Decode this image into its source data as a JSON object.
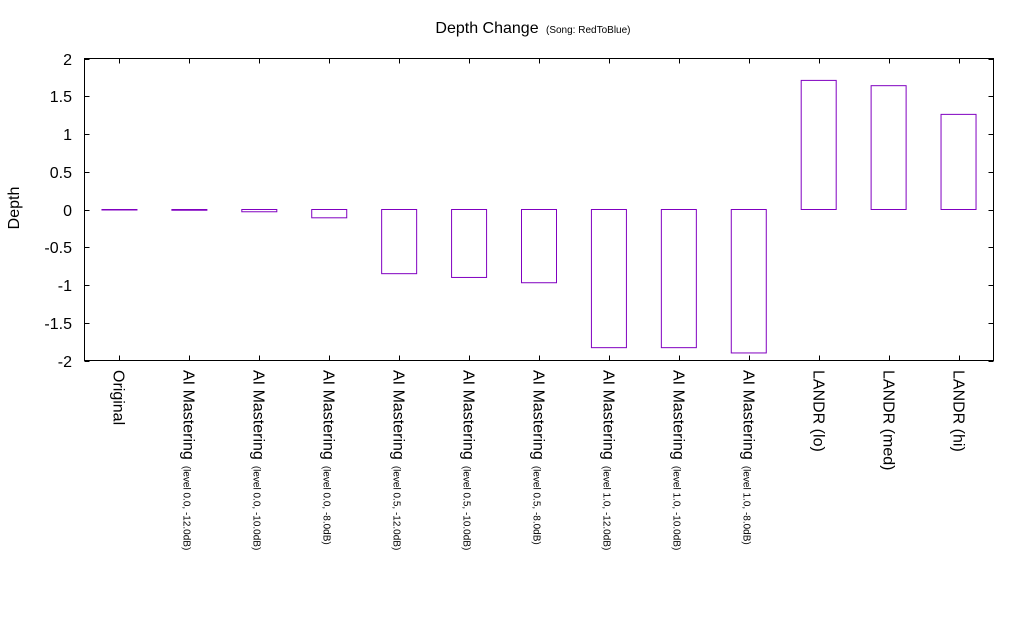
{
  "chart_data": {
    "type": "bar",
    "title": "Depth Change",
    "subtitle": "(Song: RedToBlue)",
    "ylabel": "Depth",
    "xlabel": "",
    "ylim": [
      -2,
      2
    ],
    "yticks": [
      -2,
      -1.5,
      -1,
      -0.5,
      0,
      0.5,
      1,
      1.5,
      2
    ],
    "ytick_labels": [
      "-2",
      "-1.5",
      "-1",
      "-0.5",
      "0",
      "0.5",
      "1",
      "1.5",
      "2"
    ],
    "grid": false,
    "bar_color": "#8000c0",
    "categories": [
      {
        "main": "Original",
        "sub": ""
      },
      {
        "main": "AI Mastering",
        "sub": "(level 0.0, -12.0dB)"
      },
      {
        "main": "AI Mastering",
        "sub": "(level 0.0, -10.0dB)"
      },
      {
        "main": "AI Mastering",
        "sub": "(level 0.0, -8.0dB)"
      },
      {
        "main": "AI Mastering",
        "sub": "(level 0.5, -12.0dB)"
      },
      {
        "main": "AI Mastering",
        "sub": "(level 0.5, -10.0dB)"
      },
      {
        "main": "AI Mastering",
        "sub": "(level 0.5, -8.0dB)"
      },
      {
        "main": "AI Mastering",
        "sub": "(level 1.0, -12.0dB)"
      },
      {
        "main": "AI Mastering",
        "sub": "(level 1.0, -10.0dB)"
      },
      {
        "main": "AI Mastering",
        "sub": "(level 1.0, -8.0dB)"
      },
      {
        "main": "LANDR (lo)",
        "sub": ""
      },
      {
        "main": "LANDR (med)",
        "sub": ""
      },
      {
        "main": "LANDR (hi)",
        "sub": ""
      }
    ],
    "values": [
      0.0,
      -0.01,
      -0.03,
      -0.11,
      -0.85,
      -0.9,
      -0.97,
      -1.83,
      -1.83,
      -1.9,
      1.71,
      1.64,
      1.26
    ]
  }
}
